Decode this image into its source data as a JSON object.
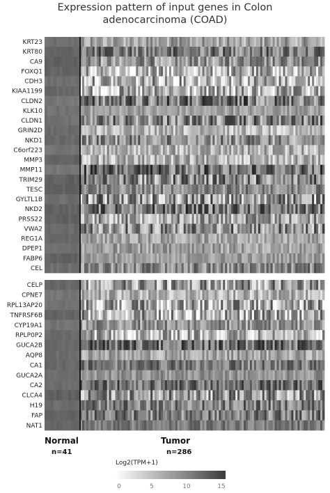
{
  "chart_data": {
    "type": "heatmap",
    "title_line1": "Expression pattern of input genes in Colon",
    "title_line2": "adenocarcinoma (COAD)",
    "upper_genes": [
      "KRT23",
      "KRT80",
      "CA9",
      "FOXQ1",
      "CDH3",
      "KIAA1199",
      "CLDN2",
      "KLK10",
      "CLDN1",
      "GRIN2D",
      "NKD1",
      "C6orf223",
      "MMP3",
      "MMP11",
      "TRIM29",
      "TESC",
      "GYLTL1B",
      "NKD2",
      "PRSS22",
      "VWA2",
      "REG1A",
      "DPEP1",
      "FABP6",
      "CEL"
    ],
    "lower_genes": [
      "CELP",
      "CPNE7",
      "RPL13AP20",
      "TNFRSF6B",
      "CYP19A1",
      "RPLP0P2",
      "GUCA2B",
      "AQP8",
      "CA1",
      "GUCA2A",
      "CA2",
      "CLCA4",
      "H19",
      "FAP",
      "NAT1"
    ],
    "groups": [
      {
        "name": "Normal",
        "n": "n=41"
      },
      {
        "name": "Tumor",
        "n": "n=286"
      }
    ],
    "legend": {
      "title": "Log2(TPM+1)",
      "ticks": [
        "0",
        "5",
        "10",
        "15"
      ],
      "range": [
        0,
        15
      ]
    }
  }
}
